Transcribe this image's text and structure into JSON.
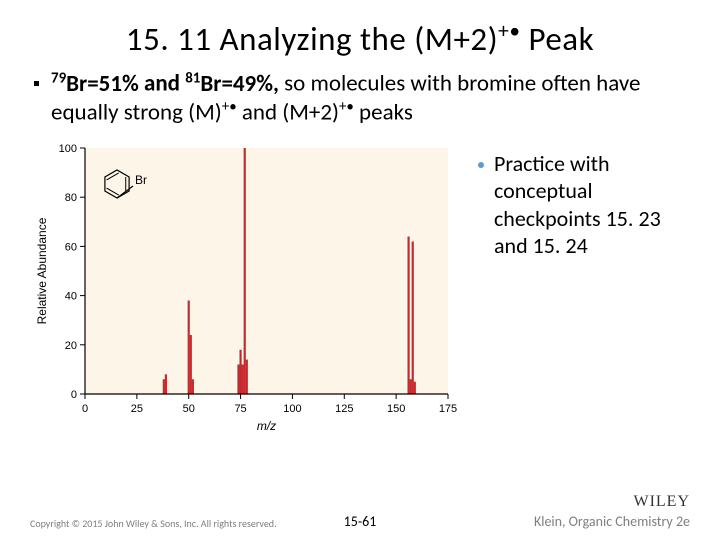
{
  "title": {
    "prefix": "15. 11 Analyzing the (M+2)",
    "super": "+•",
    "suffix": " Peak"
  },
  "main_bullet": {
    "iso1_sup": "79",
    "iso1": "Br=51% ",
    "conj": "and ",
    "iso2_sup": "81",
    "iso2": "Br=49%,",
    "rest1": " so molecules with bromine often have equally strong (M)",
    "sup1": "+•",
    "rest2": " and (M+2)",
    "sup2": "+•",
    "rest3": " peaks"
  },
  "side_bullet": {
    "text": "Practice with conceptual checkpoints 15. 23 and 15. 24"
  },
  "chart": {
    "type": "bar",
    "xlabel": "m/z",
    "ylabel": "Relative Abundance",
    "xlim": [
      0,
      175
    ],
    "ylim": [
      0,
      100
    ],
    "xticks": [
      0,
      25,
      50,
      75,
      100,
      125,
      150,
      175
    ],
    "yticks": [
      0,
      20,
      40,
      60,
      80,
      100
    ],
    "background_color": "#fdf6e8",
    "axis_color": "#000000",
    "bar_color": "#c52b2e",
    "peaks": [
      {
        "mz": 38,
        "h": 6
      },
      {
        "mz": 39,
        "h": 8
      },
      {
        "mz": 50,
        "h": 38
      },
      {
        "mz": 51,
        "h": 24
      },
      {
        "mz": 52,
        "h": 6
      },
      {
        "mz": 74,
        "h": 12
      },
      {
        "mz": 75,
        "h": 18
      },
      {
        "mz": 76,
        "h": 12
      },
      {
        "mz": 77,
        "h": 100
      },
      {
        "mz": 78,
        "h": 14
      },
      {
        "mz": 156,
        "h": 64
      },
      {
        "mz": 157,
        "h": 6
      },
      {
        "mz": 158,
        "h": 62
      },
      {
        "mz": 159,
        "h": 5
      }
    ],
    "label_fontsize": 12,
    "tick_fontsize": 11,
    "structure_label": "Br"
  },
  "footer": {
    "copyright": "Copyright © 2015 John Wiley & Sons, Inc. All rights reserved.",
    "page": "15-61",
    "publisher": "WILEY",
    "book": "Klein, Organic Chemistry 2e"
  }
}
